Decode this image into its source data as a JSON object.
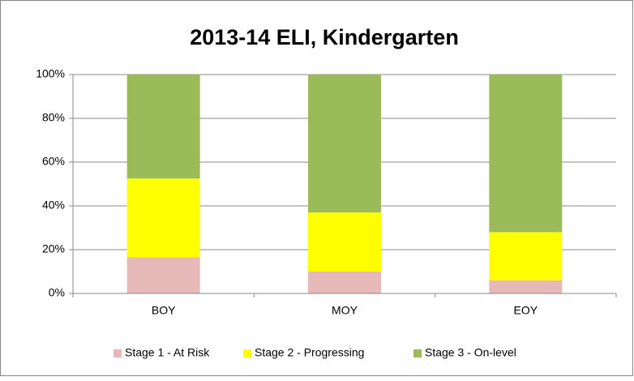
{
  "chart_data": {
    "type": "stacked_bar",
    "title": "2013-14 ELI, Kindergarten",
    "categories": [
      "BOY",
      "MOY",
      "EOY"
    ],
    "series": [
      {
        "name": "Stage 1 - At Risk",
        "color": "#e6b9b8",
        "values": [
          16.5,
          10,
          6
        ]
      },
      {
        "name": "Stage 2 - Progressing",
        "color": "#ffff00",
        "values": [
          36,
          27,
          22
        ]
      },
      {
        "name": "Stage 3 - On-level",
        "color": "#9bbb59",
        "values": [
          47.5,
          63,
          72
        ]
      }
    ],
    "ylim": [
      0,
      100
    ],
    "yticks": [
      {
        "value": 0,
        "label": "0%"
      },
      {
        "value": 20,
        "label": "20%"
      },
      {
        "value": 40,
        "label": "40%"
      },
      {
        "value": 60,
        "label": "60%"
      },
      {
        "value": 80,
        "label": "80%"
      },
      {
        "value": 100,
        "label": "100%"
      }
    ],
    "grid": true,
    "legend": "bottom"
  }
}
